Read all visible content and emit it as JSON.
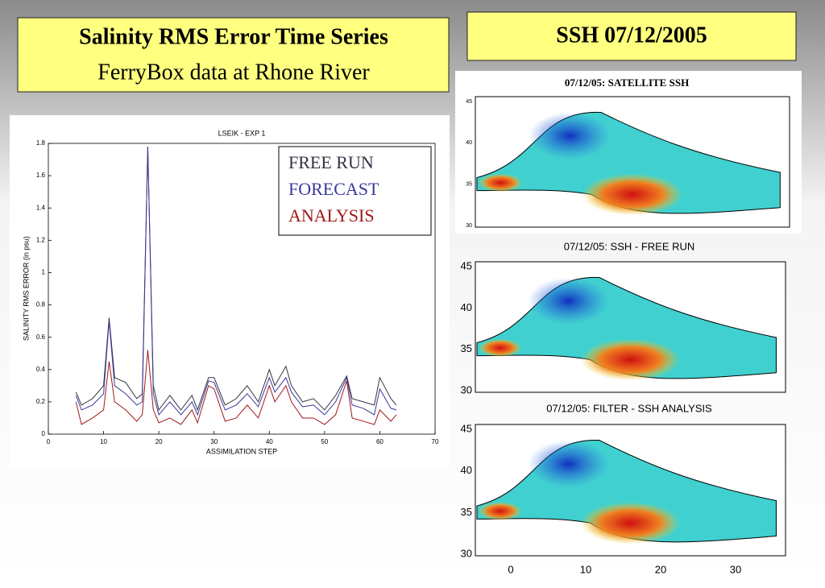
{
  "header": {
    "title": "Salinity RMS Error Time Series",
    "subtitle": "FerryBox data at Rhone River",
    "right_title": "SSH 07/12/2005"
  },
  "chart_data": {
    "type": "line",
    "title": "LSEIK - EXP 1",
    "x_label": "ASSIMILATION STEP",
    "y_label": "SALINITY RMS ERROR (in psu)",
    "x": [
      5,
      6,
      8,
      10,
      11,
      12,
      14,
      16,
      17,
      18,
      19,
      20,
      22,
      24,
      26,
      27,
      29,
      30,
      32,
      34,
      36,
      38,
      40,
      41,
      43,
      44,
      46,
      48,
      50,
      52,
      54,
      55,
      57,
      59,
      60,
      62,
      63
    ],
    "series": [
      {
        "name": "FREE RUN",
        "color": "#333344",
        "values": [
          0.26,
          0.18,
          0.22,
          0.3,
          0.72,
          0.35,
          0.32,
          0.22,
          0.25,
          1.78,
          0.3,
          0.15,
          0.24,
          0.15,
          0.24,
          0.15,
          0.35,
          0.35,
          0.18,
          0.22,
          0.3,
          0.2,
          0.4,
          0.3,
          0.42,
          0.3,
          0.2,
          0.22,
          0.15,
          0.24,
          0.36,
          0.22,
          0.2,
          0.18,
          0.35,
          0.22,
          0.18
        ]
      },
      {
        "name": "FORECAST",
        "color": "#3a3a9a",
        "values": [
          0.24,
          0.15,
          0.18,
          0.25,
          0.7,
          0.3,
          0.25,
          0.18,
          0.2,
          1.78,
          0.25,
          0.12,
          0.2,
          0.12,
          0.2,
          0.12,
          0.33,
          0.32,
          0.15,
          0.18,
          0.25,
          0.17,
          0.35,
          0.26,
          0.35,
          0.26,
          0.17,
          0.18,
          0.12,
          0.2,
          0.35,
          0.18,
          0.16,
          0.12,
          0.28,
          0.16,
          0.15
        ]
      },
      {
        "name": "ANALYSIS",
        "color": "#a01818",
        "values": [
          0.2,
          0.06,
          0.1,
          0.15,
          0.45,
          0.2,
          0.15,
          0.08,
          0.12,
          0.52,
          0.15,
          0.07,
          0.1,
          0.06,
          0.15,
          0.07,
          0.3,
          0.28,
          0.08,
          0.1,
          0.18,
          0.1,
          0.3,
          0.2,
          0.3,
          0.2,
          0.1,
          0.1,
          0.06,
          0.12,
          0.33,
          0.1,
          0.08,
          0.06,
          0.15,
          0.08,
          0.12
        ]
      }
    ],
    "xlim": [
      0,
      70
    ],
    "xticks": [
      0,
      10,
      20,
      30,
      40,
      50,
      60,
      70
    ],
    "ylim": [
      0,
      1.8
    ],
    "yticks": [
      0,
      0.2,
      0.4,
      0.6,
      0.8,
      1,
      1.2,
      1.4,
      1.6,
      1.8
    ]
  },
  "maps": [
    {
      "title": "07/12/05: SATELLITE SSH",
      "yticks": [
        45,
        40,
        35,
        30
      ]
    },
    {
      "title": "07/12/05: SSH - FREE RUN",
      "yticks": [
        45,
        40,
        35,
        30
      ]
    },
    {
      "title": "07/12/05: FILTER - SSH ANALYSIS",
      "yticks": [
        45,
        40,
        35,
        30
      ],
      "xticks": [
        0,
        10,
        20,
        30
      ]
    }
  ]
}
